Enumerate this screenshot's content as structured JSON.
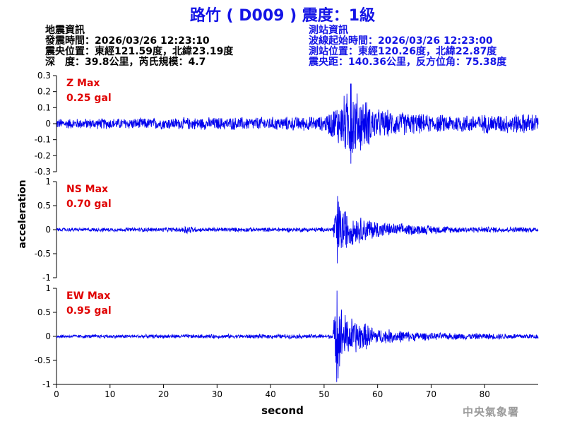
{
  "header": {
    "title": "路竹 ( D009 ) 震度：1級",
    "quake_info_title": "地震資訊",
    "origin_time": "發震時間：2026/03/26 12:23:10",
    "epicenter": "震央位置：東經121.59度，北緯23.19度",
    "depth_magnitude": "深　度：39.8公里，芮氏規模：4.7",
    "station_info_title": "測站資訊",
    "waveform_start": "波線起始時間：2026/03/26 12:23:00",
    "station_location": "測站位置：東經120.26度，北緯22.87度",
    "distance_azimuth": "震央距：140.36公里，反方位角：75.38度"
  },
  "org_label": "中央氣象署",
  "colors": {
    "title": "#1414e6",
    "trace": "#0000ee",
    "max_label": "#e00000",
    "axis": "#000000",
    "org": "#9a9a9a"
  },
  "chart_data": {
    "type": "line",
    "xlabel": "second",
    "ylabel": "acceleration",
    "xlim": [
      0,
      90
    ],
    "x_ticks": [
      0,
      10,
      20,
      30,
      40,
      50,
      60,
      70,
      80
    ],
    "panels": [
      {
        "name": "Z",
        "max_label": "Z Max",
        "max_value": "0.25 gal",
        "ylim": [
          -0.3,
          0.3
        ],
        "y_ticks": [
          -0.3,
          -0.2,
          -0.1,
          0,
          0.1,
          0.2,
          0.3
        ],
        "y_tick_labels": [
          "-0.3",
          "-0.2",
          "-0.1",
          "0",
          "0.1",
          "0.2",
          "0.3"
        ],
        "noise_amplitude": 0.035,
        "signal": {
          "onset_s": 52,
          "peak_s": 55,
          "peak_amplitude": 0.25,
          "decay_s": 8
        },
        "envelope": [
          [
            0,
            0.035
          ],
          [
            20,
            0.04
          ],
          [
            50,
            0.05
          ],
          [
            52,
            0.12
          ],
          [
            55,
            0.25
          ],
          [
            60,
            0.1
          ],
          [
            70,
            0.06
          ],
          [
            90,
            0.07
          ]
        ]
      },
      {
        "name": "NS",
        "max_label": "NS Max",
        "max_value": "0.70 gal",
        "ylim": [
          -1,
          1
        ],
        "y_ticks": [
          -1,
          -0.5,
          0,
          0.5,
          1
        ],
        "y_tick_labels": [
          "-1",
          "-0.5",
          "0",
          "0.5",
          "1"
        ],
        "noise_amplitude": 0.04,
        "signal": {
          "onset_s": 51.8,
          "peak_s": 52.5,
          "peak_amplitude": 0.7,
          "decay_s": 6
        },
        "envelope": [
          [
            0,
            0.04
          ],
          [
            23,
            0.05
          ],
          [
            24.5,
            0.12
          ],
          [
            26,
            0.05
          ],
          [
            51.5,
            0.05
          ],
          [
            52.5,
            0.7
          ],
          [
            55,
            0.35
          ],
          [
            62,
            0.15
          ],
          [
            75,
            0.07
          ],
          [
            90,
            0.06
          ]
        ]
      },
      {
        "name": "EW",
        "max_label": "EW Max",
        "max_value": "0.95 gal",
        "ylim": [
          -1,
          1
        ],
        "y_ticks": [
          -1,
          -0.5,
          0,
          0.5,
          1
        ],
        "y_tick_labels": [
          "-1",
          "-0.5",
          "0",
          "0.5",
          "1"
        ],
        "noise_amplitude": 0.04,
        "signal": {
          "onset_s": 51.8,
          "peak_s": 52.4,
          "peak_amplitude": 0.95,
          "decay_s": 6
        },
        "envelope": [
          [
            0,
            0.04
          ],
          [
            51.5,
            0.05
          ],
          [
            52.4,
            0.95
          ],
          [
            54,
            0.5
          ],
          [
            60,
            0.18
          ],
          [
            70,
            0.08
          ],
          [
            90,
            0.06
          ]
        ]
      }
    ]
  }
}
